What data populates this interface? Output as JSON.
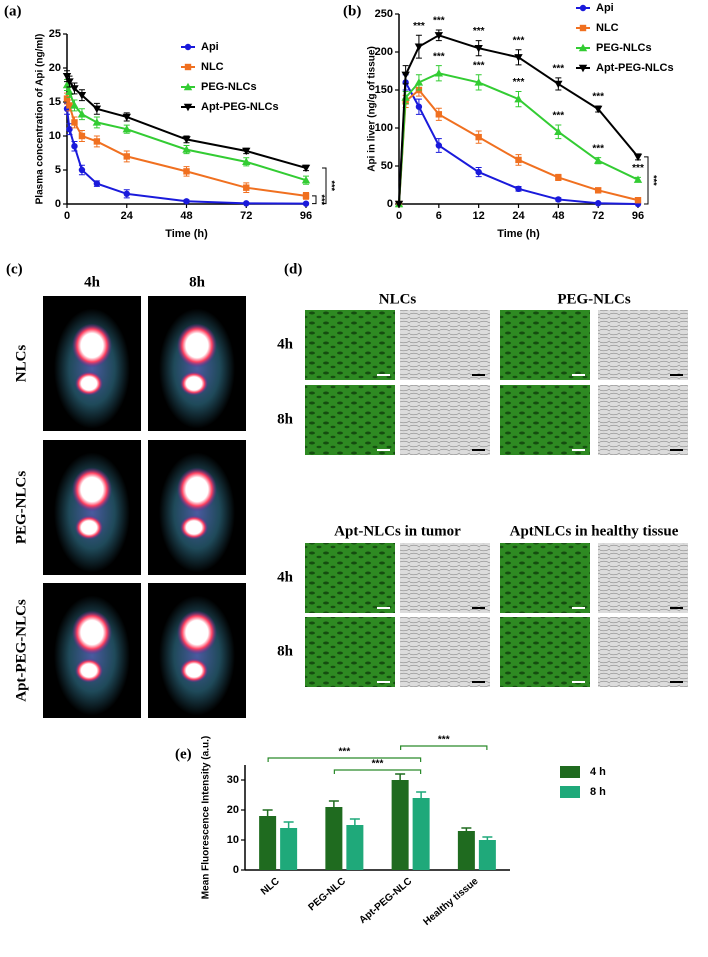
{
  "chart_data": [
    {
      "type": "line",
      "panel_label": "(a)",
      "x_label": "Time (h)",
      "y_label": "Plasma concentration of Api (ng/ml)",
      "x_scale": "linear",
      "x": [
        0,
        1,
        3,
        6,
        12,
        24,
        48,
        72,
        96
      ],
      "xlim": [
        0,
        96
      ],
      "xticks": [
        0,
        24,
        48,
        72,
        96
      ],
      "ylim": [
        0,
        25
      ],
      "yticks": [
        0,
        5,
        10,
        15,
        20,
        25
      ],
      "series": [
        {
          "name": "Api",
          "color": "#1a1adb",
          "marker": "circle",
          "values": [
            14,
            11,
            8.5,
            5,
            3,
            1.5,
            0.4,
            0.1,
            0.05
          ],
          "errors": [
            0.8,
            0.8,
            0.7,
            0.7,
            0.4,
            0.6,
            0.2,
            0.1,
            0.1
          ]
        },
        {
          "name": "NLC",
          "color": "#f07020",
          "marker": "square",
          "values": [
            15.5,
            14.5,
            12,
            10,
            9.2,
            7,
            4.8,
            2.4,
            1.2
          ],
          "errors": [
            0.8,
            0.8,
            0.8,
            0.8,
            0.8,
            0.8,
            0.7,
            0.7,
            0.5
          ]
        },
        {
          "name": "PEG-NLCs",
          "color": "#33cc33",
          "marker": "triangle",
          "values": [
            17.5,
            16.5,
            14.5,
            13.2,
            12,
            11,
            8,
            6.2,
            3.5
          ],
          "errors": [
            0.8,
            0.8,
            0.8,
            0.8,
            0.8,
            0.6,
            0.6,
            0.6,
            0.6
          ]
        },
        {
          "name": "Apt-PEG-NLCs",
          "color": "#000000",
          "marker": "triangle-down",
          "values": [
            18.8,
            18,
            17,
            16,
            14,
            12.8,
            9.5,
            7.8,
            5.3
          ],
          "errors": [
            0.8,
            0.8,
            0.8,
            0.8,
            0.8,
            0.6,
            0.5,
            0.4,
            0.4
          ]
        }
      ],
      "brackets": [
        {
          "text": "***",
          "series": [
            1,
            0
          ]
        },
        {
          "text": "***",
          "series": [
            3,
            0
          ]
        }
      ]
    },
    {
      "type": "line",
      "panel_label": "(b)",
      "x_label": "Time (h)",
      "y_label": "Api in liver (ng/g of tissue)",
      "x_scale": "segmented",
      "x": [
        0,
        1,
        3,
        6,
        12,
        24,
        48,
        72,
        96
      ],
      "xlim": [
        0,
        96
      ],
      "xticks": [
        0,
        6,
        12,
        24,
        48,
        72,
        96
      ],
      "ylim": [
        0,
        250
      ],
      "yticks": [
        0,
        50,
        100,
        150,
        200,
        250
      ],
      "series": [
        {
          "name": "Api",
          "color": "#1a1adb",
          "marker": "circle",
          "values": [
            0,
            160,
            128,
            77,
            42,
            20,
            6,
            1,
            0
          ],
          "errors": [
            0,
            10,
            10,
            9,
            6,
            3,
            2,
            1,
            0
          ]
        },
        {
          "name": "NLC",
          "color": "#f07020",
          "marker": "square",
          "values": [
            0,
            135,
            150,
            118,
            88,
            58,
            35,
            18,
            5
          ],
          "errors": [
            0,
            8,
            8,
            8,
            8,
            7,
            4,
            3,
            2
          ]
        },
        {
          "name": "PEG-NLCs",
          "color": "#33cc33",
          "marker": "triangle",
          "values": [
            0,
            140,
            160,
            172,
            160,
            138,
            95,
            57,
            32
          ],
          "errors": [
            0,
            8,
            10,
            10,
            10,
            10,
            9,
            4,
            3
          ]
        },
        {
          "name": "Apt-PEG-NLCs",
          "color": "#000000",
          "marker": "triangle-down",
          "values": [
            0,
            170,
            207,
            222,
            205,
            193,
            158,
            125,
            62
          ],
          "errors": [
            0,
            12,
            15,
            7,
            10,
            10,
            8,
            4,
            4
          ]
        }
      ],
      "point_marks": [
        {
          "text": "***",
          "series": 3,
          "index": 2
        },
        {
          "text": "***",
          "series": 3,
          "index": 3
        },
        {
          "text": "***",
          "series": 3,
          "index": 4
        },
        {
          "text": "***",
          "series": 3,
          "index": 5
        },
        {
          "text": "***",
          "series": 3,
          "index": 6
        },
        {
          "text": "***",
          "series": 3,
          "index": 7
        },
        {
          "text": "***",
          "series": 2,
          "index": 3
        },
        {
          "text": "***",
          "series": 2,
          "index": 4
        },
        {
          "text": "***",
          "series": 2,
          "index": 5
        },
        {
          "text": "***",
          "series": 2,
          "index": 6
        },
        {
          "text": "***",
          "series": 2,
          "index": 7
        },
        {
          "text": "***",
          "series": 2,
          "index": 8
        }
      ],
      "brackets": [
        {
          "text": "***",
          "series": [
            3,
            0
          ]
        }
      ]
    },
    {
      "type": "bar",
      "panel_label": "(e)",
      "y_label": "Mean Fluorescence Intensity (a.u.)",
      "categories": [
        "NLC",
        "PEG-NLC",
        "Apt-PEG-NLC",
        "Healthy tissue"
      ],
      "ylim": [
        0,
        35
      ],
      "yticks": [
        0,
        10,
        20,
        30
      ],
      "series": [
        {
          "name": "4 h",
          "color": "#1f6b1f",
          "values": [
            18,
            21,
            30,
            13
          ],
          "errors": [
            2,
            2,
            2,
            1
          ]
        },
        {
          "name": "8 h",
          "color": "#1fa97a",
          "values": [
            14,
            15,
            24,
            10
          ],
          "errors": [
            2,
            2,
            2,
            1
          ]
        }
      ],
      "brackets": [
        {
          "text": "***",
          "categories": [
            1,
            2
          ]
        },
        {
          "text": "***",
          "categories": [
            0,
            2
          ]
        },
        {
          "text": "***",
          "categories": [
            2,
            3
          ]
        }
      ]
    }
  ],
  "imaging": {
    "label": "(c)",
    "columns": [
      "4h",
      "8h"
    ],
    "rows": [
      "NLCs",
      "PEG-NLCs",
      "Apt-PEG-NLCs"
    ]
  },
  "histology": {
    "label": "(d)",
    "blocks": [
      {
        "titles": [
          "NLCs",
          "PEG-NLCs"
        ],
        "rows": [
          "4h",
          "8h"
        ]
      },
      {
        "titles": [
          "Apt-NLCs in tumor",
          "AptNLCs in healthy tissue"
        ],
        "rows": [
          "4h",
          "8h"
        ]
      }
    ]
  }
}
